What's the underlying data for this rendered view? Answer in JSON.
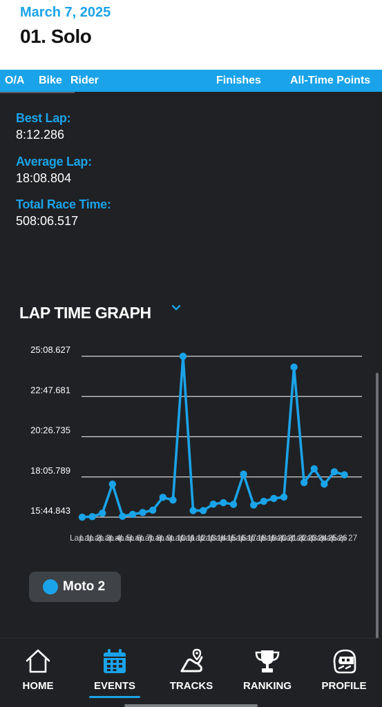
{
  "header": {
    "date": "March 7, 2025",
    "title": "01. Solo"
  },
  "tabs": [
    "O/A",
    "Bike",
    "Rider",
    "Finishes",
    "All-Time Points"
  ],
  "stats": [
    {
      "label": "Best Lap:",
      "value": "8:12.286"
    },
    {
      "label": "Average Lap:",
      "value": "18:08.804"
    },
    {
      "label": "Total Race Time:",
      "value": "508:06.517"
    }
  ],
  "graph": {
    "title": "LAP TIME GRAPH",
    "accent": "#1aa3e8"
  },
  "chart_data": {
    "type": "line",
    "title": "LAP TIME GRAPH",
    "xlabel": "",
    "ylabel": "",
    "y_tick_labels": [
      "25:08.627",
      "22:47.681",
      "20:26.735",
      "18:05.789",
      "15:44.843"
    ],
    "ylim_seconds": [
      944.843,
      1508.627
    ],
    "x_tick_labels": [
      "Lap 1",
      "Lap 2",
      "Lap 3",
      "Lap 4",
      "Lap 5",
      "Lap 6",
      "Lap 7",
      "Lap 8",
      "Lap 9",
      "Lap 10",
      "Lap 11",
      "Lap 12",
      "Lap 13",
      "Lap 14",
      "Lap 15",
      "Lap 16",
      "Lap 17",
      "Lap 18",
      "Lap 19",
      "Lap 20",
      "Lap 21",
      "Lap 22",
      "Lap 23",
      "Lap 24",
      "Lap 25",
      "Lap 26",
      "Lap 27"
    ],
    "series": [
      {
        "name": "Moto 2",
        "color": "#1aa3e8",
        "values_seconds": [
          944.8,
          946.5,
          958.5,
          1060.4,
          947.7,
          954.7,
          961.0,
          969.2,
          1014.2,
          1004.5,
          1508.6,
          967.8,
          967.8,
          990.2,
          995.6,
          989.6,
          1095.6,
          987.4,
          1000.4,
          1010.2,
          1015.2,
          1470.6,
          1066.1,
          1114.2,
          1060.4,
          1103.7,
          1093.2
        ]
      }
    ]
  },
  "legend": {
    "label": "Moto 2"
  },
  "nav": [
    {
      "label": "HOME",
      "icon": "home-icon"
    },
    {
      "label": "EVENTS",
      "icon": "calendar-icon"
    },
    {
      "label": "TRACKS",
      "icon": "track-icon"
    },
    {
      "label": "RANKING",
      "icon": "trophy-icon"
    },
    {
      "label": "PROFILE",
      "icon": "helmet-icon"
    }
  ]
}
